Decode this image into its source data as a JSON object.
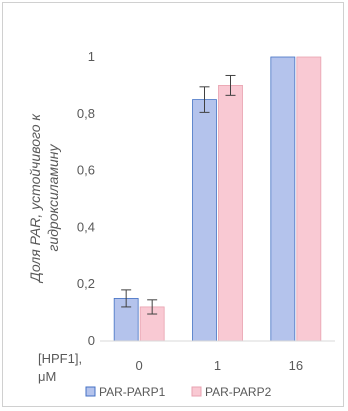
{
  "chart_data": {
    "type": "bar",
    "x_header": [
      "[HPF1],",
      "μM"
    ],
    "categories": [
      "0",
      "1",
      "16"
    ],
    "ylabel_lines": [
      "Доля PAR, устойчивого к",
      "гидроксиламину"
    ],
    "ylim": [
      0,
      1
    ],
    "yticks": [
      "0",
      "0,2",
      "0,4",
      "0,6",
      "0,8",
      "1"
    ],
    "ytick_values": [
      0,
      0.2,
      0.4,
      0.6,
      0.8,
      1
    ],
    "grid": false,
    "legend_position": "bottom",
    "series": [
      {
        "name": "PAR-PARP1",
        "values": [
          0.15,
          0.85,
          1.0
        ],
        "errors": [
          0.03,
          0.045,
          0.0
        ],
        "fill": "#b4c3ec",
        "stroke": "#4472c4"
      },
      {
        "name": "PAR-PARP2",
        "values": [
          0.12,
          0.9,
          1.0
        ],
        "errors": [
          0.025,
          0.035,
          0.0
        ],
        "fill": "#f9c9d3",
        "stroke": "#e8a2b0"
      }
    ]
  }
}
